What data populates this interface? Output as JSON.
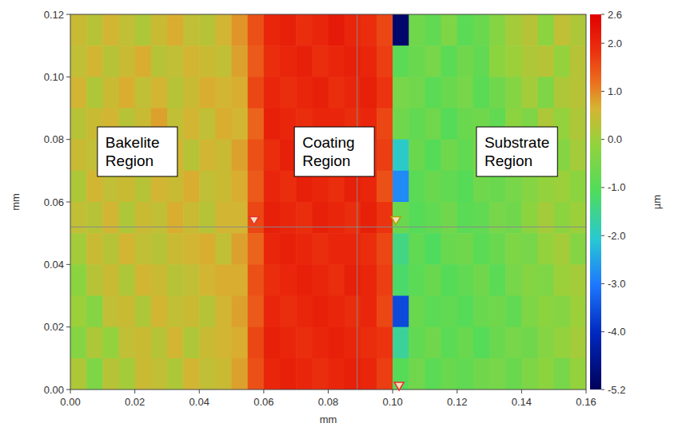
{
  "chart_data": {
    "type": "heatmap",
    "xlabel": "mm",
    "ylabel": "mm",
    "xlim": [
      0,
      0.16
    ],
    "ylim": [
      0,
      0.12
    ],
    "xticks": [
      {
        "value": 0,
        "label": "0.00"
      },
      {
        "value": 0.02,
        "label": "0.02"
      },
      {
        "value": 0.04,
        "label": "0.04"
      },
      {
        "value": 0.06,
        "label": "0.06"
      },
      {
        "value": 0.08,
        "label": "0.08"
      },
      {
        "value": 0.1,
        "label": "0.10"
      },
      {
        "value": 0.12,
        "label": "0.12"
      },
      {
        "value": 0.14,
        "label": "0.14"
      },
      {
        "value": 0.16,
        "label": "0.16"
      }
    ],
    "yticks": [
      {
        "value": 0,
        "label": "0.00"
      },
      {
        "value": 0.02,
        "label": "0.02"
      },
      {
        "value": 0.04,
        "label": "0.04"
      },
      {
        "value": 0.06,
        "label": "0.06"
      },
      {
        "value": 0.08,
        "label": "0.08"
      },
      {
        "value": 0.1,
        "label": "0.10"
      },
      {
        "value": 0.12,
        "label": "0.12"
      }
    ],
    "z": [
      [
        0.5,
        0.3,
        0.6,
        0.4,
        0.2,
        0.5,
        0.7,
        0.4,
        0.3,
        0.6,
        0.9,
        1.5,
        2.0,
        2.1,
        1.9,
        2.0,
        2.2,
        2.0,
        1.9,
        1.6,
        -5.0,
        -0.6,
        -0.8,
        -0.4,
        -0.9,
        -0.7,
        -0.3,
        0.1,
        0.3,
        -0.2,
        0.4,
        0.2
      ],
      [
        0.4,
        0.6,
        0.3,
        0.5,
        0.7,
        0.3,
        0.4,
        0.6,
        0.5,
        0.4,
        0.8,
        1.4,
        1.9,
        2.0,
        2.1,
        1.9,
        2.0,
        2.1,
        2.0,
        1.7,
        -0.9,
        -0.7,
        -0.5,
        -0.9,
        -0.6,
        -0.8,
        -0.2,
        0.0,
        0.2,
        0.3,
        -0.1,
        0.3
      ],
      [
        0.6,
        0.2,
        0.5,
        0.7,
        0.4,
        0.6,
        0.3,
        0.5,
        0.7,
        0.6,
        0.7,
        1.6,
        2.0,
        1.9,
        2.0,
        2.1,
        1.9,
        2.0,
        2.1,
        1.8,
        -0.5,
        -0.6,
        -0.9,
        -0.7,
        -0.5,
        -0.9,
        -0.6,
        -0.3,
        0.1,
        -0.4,
        0.2,
        0.3
      ],
      [
        0.3,
        0.5,
        0.6,
        0.3,
        0.5,
        0.8,
        0.4,
        0.6,
        0.4,
        0.7,
        0.6,
        1.3,
        2.1,
        2.0,
        1.9,
        2.0,
        2.0,
        1.9,
        2.0,
        1.6,
        -0.6,
        -0.8,
        -0.6,
        -1.0,
        -0.7,
        -0.6,
        -0.8,
        -0.2,
        -0.4,
        0.2,
        -0.1,
        0.2
      ],
      [
        0.5,
        0.4,
        0.2,
        0.6,
        0.7,
        0.4,
        0.6,
        0.3,
        0.6,
        0.5,
        0.8,
        1.5,
        1.9,
        2.1,
        2.0,
        1.9,
        2.1,
        2.0,
        1.9,
        1.7,
        -2.0,
        -0.7,
        -1.0,
        -0.6,
        -0.8,
        -0.5,
        -0.9,
        -0.4,
        -0.2,
        0.1,
        -0.3,
        0.1
      ],
      [
        0.2,
        0.6,
        0.4,
        0.5,
        0.3,
        0.6,
        0.5,
        0.7,
        0.4,
        0.5,
        0.7,
        1.4,
        2.0,
        1.9,
        2.1,
        2.0,
        1.9,
        2.1,
        2.0,
        1.5,
        -2.8,
        -0.9,
        -0.7,
        -0.8,
        -1.0,
        -0.6,
        -0.7,
        -0.5,
        -0.3,
        -0.1,
        0.0,
        -0.2
      ],
      [
        0.4,
        0.3,
        0.6,
        0.2,
        0.5,
        0.4,
        0.7,
        0.5,
        0.3,
        0.6,
        0.6,
        1.6,
        2.1,
        2.0,
        1.9,
        2.1,
        2.0,
        1.9,
        2.1,
        1.8,
        -0.7,
        -1.0,
        -0.8,
        -0.6,
        -0.9,
        -0.8,
        -0.5,
        -0.6,
        -0.2,
        0.1,
        -0.2,
        0.0
      ],
      [
        0.1,
        0.5,
        0.3,
        0.6,
        0.4,
        0.3,
        0.5,
        0.6,
        0.7,
        0.4,
        0.8,
        1.3,
        2.0,
        2.1,
        2.0,
        1.9,
        2.0,
        2.0,
        1.9,
        1.6,
        -1.4,
        -0.8,
        -1.1,
        -0.7,
        -0.6,
        -0.9,
        -0.7,
        -0.4,
        -0.5,
        -0.1,
        0.1,
        -0.3
      ],
      [
        -0.2,
        0.3,
        0.5,
        0.2,
        0.6,
        0.5,
        0.3,
        0.4,
        0.6,
        0.7,
        0.7,
        1.5,
        1.9,
        2.0,
        2.1,
        2.0,
        1.9,
        2.1,
        2.0,
        1.7,
        -1.2,
        -0.9,
        -0.7,
        -1.0,
        -0.8,
        -0.6,
        -0.9,
        -0.5,
        -0.3,
        -0.4,
        0.0,
        0.1
      ],
      [
        0.0,
        -0.3,
        0.4,
        0.5,
        0.2,
        0.6,
        0.4,
        0.5,
        0.3,
        0.6,
        0.8,
        1.4,
        2.0,
        1.9,
        2.0,
        2.1,
        2.0,
        1.9,
        2.0,
        1.6,
        -3.6,
        -0.7,
        -0.9,
        -0.8,
        -1.0,
        -0.7,
        -0.6,
        -0.8,
        -0.4,
        -0.2,
        -0.3,
        0.0
      ],
      [
        -0.3,
        0.2,
        -0.1,
        0.4,
        0.5,
        0.3,
        0.6,
        0.2,
        0.5,
        0.6,
        0.7,
        1.6,
        2.1,
        2.0,
        1.9,
        2.0,
        2.1,
        2.0,
        1.9,
        1.8,
        -1.6,
        -0.8,
        -0.6,
        -0.9,
        -0.7,
        -1.0,
        -0.7,
        -0.5,
        -0.6,
        -0.3,
        -0.1,
        0.1
      ],
      [
        0.2,
        -0.4,
        0.3,
        0.1,
        0.5,
        0.4,
        0.2,
        0.6,
        0.4,
        0.5,
        0.8,
        1.5,
        2.0,
        2.1,
        2.0,
        1.9,
        2.0,
        2.1,
        2.0,
        1.7,
        -1.0,
        -0.6,
        -0.9,
        -0.7,
        -0.8,
        -0.6,
        -0.5,
        -0.7,
        -0.4,
        -0.2,
        -0.5,
        -0.1
      ]
    ],
    "colorbar": {
      "label": "µm",
      "range": [
        -5.2,
        2.6
      ],
      "ticks": [
        2.6,
        {
          "value": 2,
          "label": "2.0"
        },
        {
          "value": 1,
          "label": "1.0"
        },
        {
          "value": 0,
          "label": "0.0"
        },
        {
          "value": -1,
          "label": "-1.0"
        },
        {
          "value": -2,
          "label": "-2.0"
        },
        {
          "value": -3,
          "label": "-3.0"
        },
        {
          "value": -4,
          "label": "-4.0"
        },
        -5.2
      ]
    },
    "crosshair": {
      "x": 0.089,
      "y": 0.052
    },
    "markers": [
      {
        "x": 0.057,
        "y": 0.053,
        "color": "#e83030"
      },
      {
        "x": 0.101,
        "y": 0.053,
        "color": "#b0a000"
      },
      {
        "x": 0.102,
        "y": 0.0,
        "color": "#e83030"
      }
    ],
    "annotations": [
      {
        "text": "Bakelite Region",
        "x": 0.0084,
        "y": 0.084
      },
      {
        "text": "Coating Region",
        "x": 0.0695,
        "y": 0.084
      },
      {
        "text": "Substrate Region",
        "x": 0.126,
        "y": 0.084
      }
    ]
  }
}
